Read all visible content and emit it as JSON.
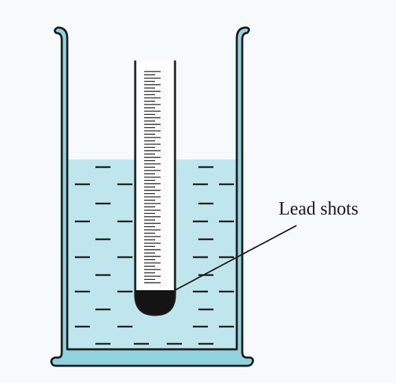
{
  "diagram": {
    "label": "Lead shots",
    "colors": {
      "background": "#f7fafa",
      "water": "#bfe6ed",
      "outline": "#1b1b1b",
      "beaker_wall_fill": "#8fd3df",
      "lead_shots": "#141414",
      "tube_inside": "#ffffff"
    }
  }
}
